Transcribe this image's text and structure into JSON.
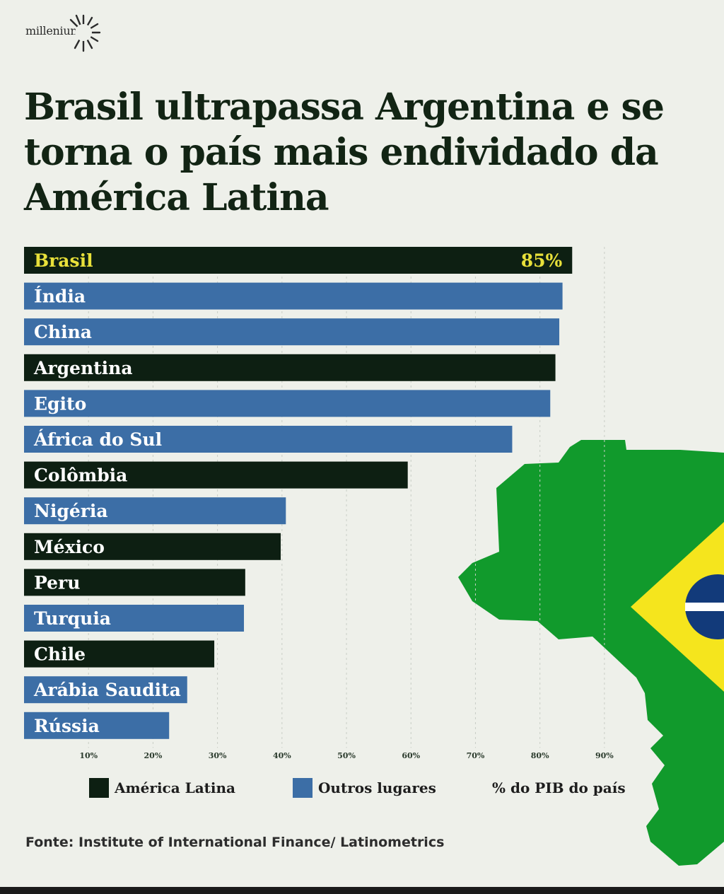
{
  "brand": {
    "logo_text": "millenium"
  },
  "colors": {
    "latin_america": "#0d1f12",
    "other": "#3c6ea6",
    "highlight_text": "#e8e03a",
    "label_text": "#ffffff",
    "background": "#eef0ea",
    "map_green": "#119a2c",
    "map_yellow": "#f5e51d",
    "map_blue": "#123a7a"
  },
  "chart_data": {
    "type": "bar",
    "orientation": "horizontal",
    "title": "Brasil ultrapassa Argentina e se torna o país mais endividado da América Latina",
    "categories": [
      "Brasil",
      "Índia",
      "China",
      "Argentina",
      "Egito",
      "África do Sul",
      "Colômbia",
      "Nigéria",
      "México",
      "Peru",
      "Turquia",
      "Chile",
      "Arábia Saudita",
      "Rússia"
    ],
    "values": [
      85,
      83.5,
      83,
      82.4,
      81.6,
      75.7,
      59.5,
      40.6,
      39.8,
      34.3,
      34.1,
      29.5,
      25.3,
      22.5
    ],
    "group": [
      "latin",
      "other",
      "other",
      "latin",
      "other",
      "other",
      "latin",
      "other",
      "latin",
      "latin",
      "other",
      "latin",
      "other",
      "other"
    ],
    "value_labels": [
      {
        "category": "Brasil",
        "text": "85%"
      }
    ],
    "x_ticks": [
      "10%",
      "20%",
      "30%",
      "40%",
      "50%",
      "60%",
      "70%",
      "80%",
      "90%"
    ],
    "x_tick_values": [
      10,
      20,
      30,
      40,
      50,
      60,
      70,
      80,
      90
    ],
    "xlim": [
      0,
      91
    ],
    "grid": true,
    "legend": {
      "position": "bottom",
      "items": [
        {
          "label": "América Latina",
          "group": "latin"
        },
        {
          "label": "Outros lugares",
          "group": "other"
        }
      ],
      "unit_label": "% do PIB do país"
    }
  },
  "source": "Fonte: Institute of International Finance/ Latinometrics"
}
